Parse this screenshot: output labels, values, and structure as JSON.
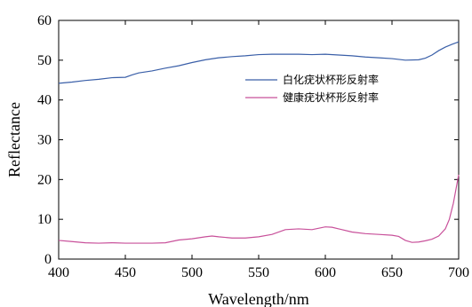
{
  "chart_data": {
    "type": "line",
    "xlabel": "Wavelength/nm",
    "ylabel": "Reflectance",
    "xlim": [
      400,
      700
    ],
    "ylim": [
      0,
      60
    ],
    "xticks": [
      "400",
      "450",
      "500",
      "550",
      "600",
      "650",
      "700"
    ],
    "yticks": [
      "0",
      "10",
      "20",
      "30",
      "40",
      "50",
      "60"
    ],
    "grid": false,
    "legend_position": "center-right",
    "series": [
      {
        "name": "白化疣状杯形反射率",
        "color": "#3a5fa8",
        "x": [
          400,
          410,
          420,
          430,
          440,
          450,
          455,
          460,
          470,
          480,
          490,
          500,
          510,
          520,
          530,
          540,
          550,
          560,
          570,
          580,
          590,
          600,
          610,
          620,
          630,
          640,
          650,
          660,
          670,
          675,
          680,
          685,
          690,
          695,
          700
        ],
        "y": [
          44.2,
          44.5,
          44.9,
          45.2,
          45.6,
          45.7,
          46.3,
          46.8,
          47.3,
          48.0,
          48.6,
          49.4,
          50.1,
          50.6,
          50.9,
          51.1,
          51.4,
          51.5,
          51.5,
          51.5,
          51.4,
          51.5,
          51.3,
          51.1,
          50.8,
          50.6,
          50.4,
          50.0,
          50.1,
          50.5,
          51.3,
          52.4,
          53.3,
          54.0,
          54.6
        ]
      },
      {
        "name": "健康疣状杯形反射率",
        "color": "#c8509a",
        "x": [
          400,
          410,
          420,
          430,
          440,
          450,
          460,
          470,
          480,
          490,
          500,
          510,
          515,
          520,
          530,
          540,
          550,
          560,
          570,
          580,
          590,
          600,
          605,
          610,
          620,
          630,
          640,
          650,
          655,
          660,
          665,
          670,
          675,
          680,
          685,
          690,
          693,
          696,
          700
        ],
        "y": [
          4.7,
          4.4,
          4.1,
          4.0,
          4.1,
          4.0,
          4.0,
          4.0,
          4.1,
          4.8,
          5.1,
          5.6,
          5.8,
          5.6,
          5.3,
          5.3,
          5.6,
          6.2,
          7.4,
          7.6,
          7.4,
          8.1,
          8.0,
          7.6,
          6.8,
          6.4,
          6.2,
          6.0,
          5.7,
          4.7,
          4.2,
          4.3,
          4.6,
          5.0,
          5.8,
          7.6,
          10.0,
          14.0,
          21.2
        ]
      }
    ]
  }
}
